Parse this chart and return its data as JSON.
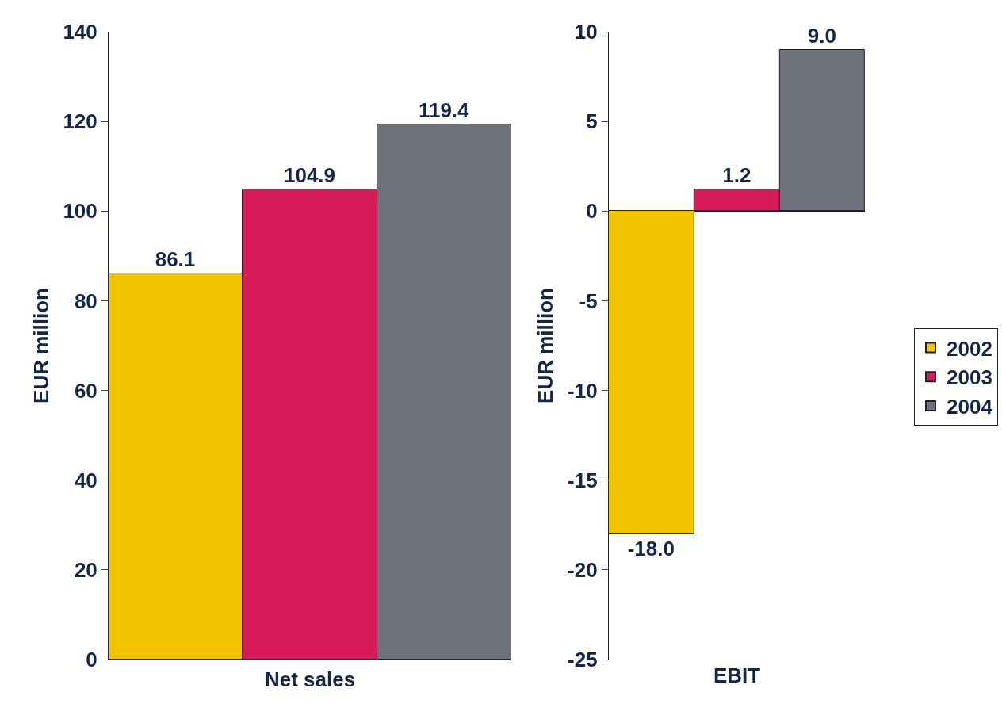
{
  "chart_data": [
    {
      "type": "bar",
      "categories": [
        null,
        null,
        null
      ],
      "xlabel": "Net sales",
      "ylabel": "EUR million",
      "ylim": [
        0,
        140
      ],
      "yticks": [
        0,
        20,
        40,
        60,
        80,
        100,
        120,
        140
      ],
      "series": [
        {
          "color": "#f2c500",
          "values": [
            86.1,
            null,
            null
          ],
          "value_labels": [
            "86.1",
            null,
            null
          ]
        },
        {
          "color": "#d81b5a",
          "values": [
            null,
            104.9,
            null
          ],
          "value_labels": [
            null,
            "104.9",
            null
          ]
        },
        {
          "color": "#6e717b",
          "values": [
            null,
            null,
            119.4
          ],
          "value_labels": [
            null,
            null,
            "119.4"
          ]
        }
      ]
    },
    {
      "type": "bar",
      "categories": [
        null,
        null,
        null
      ],
      "xlabel": "EBIT",
      "ylabel": "EUR million",
      "ylim": [
        -25,
        10
      ],
      "yticks": [
        -25,
        -20,
        -15,
        -10,
        -5,
        0,
        5,
        10
      ],
      "legend": "right",
      "series": [
        {
          "name": "2002",
          "color": "#f2c500",
          "values": [
            -18.0,
            null,
            null
          ],
          "value_labels": [
            "-18.0",
            null,
            null
          ]
        },
        {
          "name": "2003",
          "color": "#d81b5a",
          "values": [
            null,
            1.2,
            null
          ],
          "value_labels": [
            null,
            "1.2",
            null
          ]
        },
        {
          "name": "2004",
          "color": "#6e717b",
          "values": [
            null,
            null,
            9.0
          ],
          "value_labels": [
            null,
            null,
            "9.0"
          ]
        }
      ]
    }
  ]
}
